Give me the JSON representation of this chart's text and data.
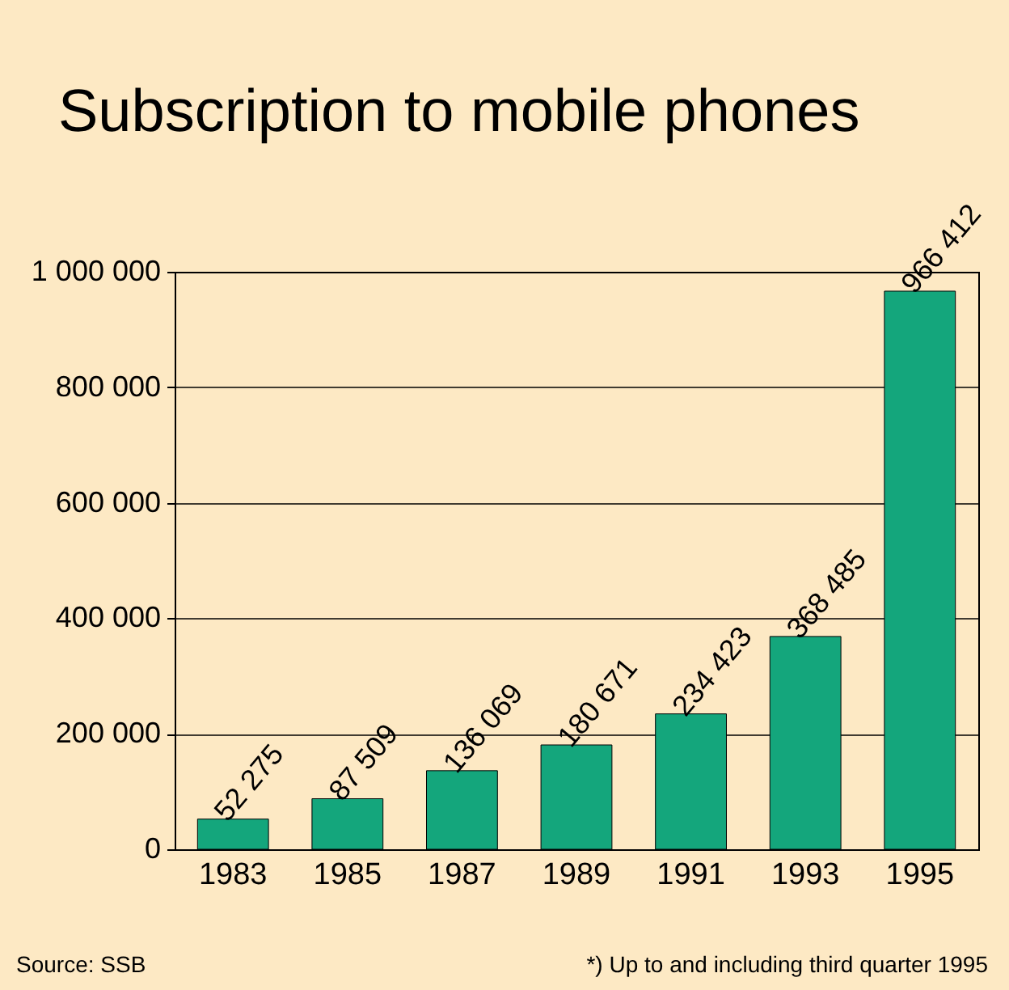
{
  "chart_data": {
    "type": "bar",
    "title": "Subscription to mobile phones",
    "categories": [
      "1983",
      "1985",
      "1987",
      "1989",
      "1991",
      "1993",
      "1995"
    ],
    "values": [
      52275,
      87509,
      136069,
      180671,
      234423,
      368485,
      966412
    ],
    "value_labels": [
      "52 275",
      "87 509",
      "136 069",
      "180 671",
      "234 423",
      "368 485",
      "966 412"
    ],
    "color": "#14a67c",
    "ylim": [
      0,
      1000000
    ],
    "yticks": [
      0,
      {
        "value": 200000,
        "label": "200 000"
      },
      {
        "value": 400000,
        "label": "400 000"
      },
      {
        "value": 600000,
        "label": "600 000"
      },
      {
        "value": 800000,
        "label": "800 000"
      },
      {
        "value": 1000000,
        "label": "1 000 000"
      }
    ],
    "grid": "y",
    "annotations": [
      "Source: SSB",
      "*) Up to and including third quarter 1995"
    ]
  }
}
